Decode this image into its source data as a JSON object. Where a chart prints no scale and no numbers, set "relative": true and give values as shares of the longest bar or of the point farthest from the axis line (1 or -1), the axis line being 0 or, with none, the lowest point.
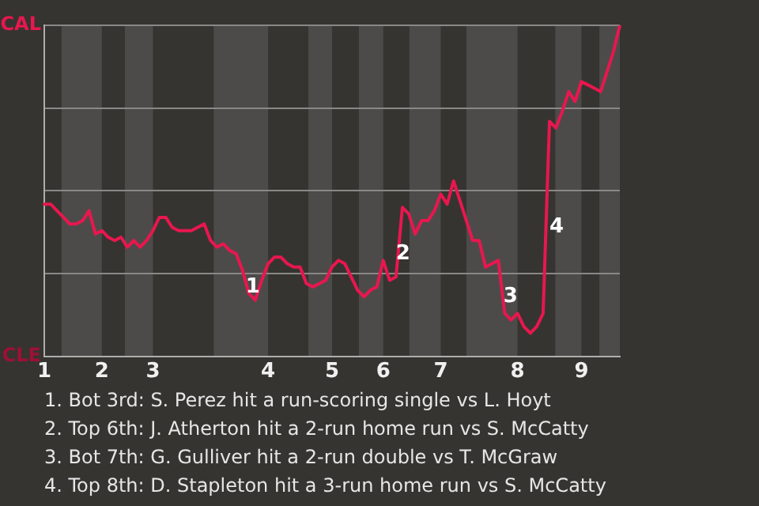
{
  "chart_data": {
    "type": "line",
    "relative": true,
    "categories": [
      "1",
      null,
      null,
      null,
      null,
      null,
      null,
      null,
      null,
      "2",
      null,
      null,
      null,
      null,
      null,
      null,
      null,
      "3",
      null,
      null,
      null,
      null,
      null,
      null,
      null,
      null,
      null,
      null,
      null,
      null,
      null,
      null,
      null,
      null,
      null,
      "4",
      null,
      null,
      null,
      null,
      null,
      null,
      null,
      null,
      null,
      "5",
      null,
      null,
      null,
      null,
      null,
      null,
      null,
      "6",
      null,
      null,
      null,
      null,
      null,
      null,
      null,
      null,
      "7",
      null,
      null,
      null,
      null,
      null,
      null,
      null,
      null,
      null,
      null,
      null,
      "8",
      null,
      null,
      null,
      null,
      null,
      null,
      null,
      null,
      null,
      "9",
      null,
      null,
      null,
      null,
      null,
      null
    ],
    "series": [
      {
        "color": "#e8174f",
        "values": [
          0.46,
          0.46,
          0.44,
          0.42,
          0.4,
          0.4,
          0.41,
          0.44,
          0.37,
          0.38,
          0.36,
          0.35,
          0.36,
          0.33,
          0.35,
          0.33,
          0.35,
          0.38,
          0.42,
          0.42,
          0.39,
          0.38,
          0.38,
          0.38,
          0.39,
          0.4,
          0.35,
          0.33,
          0.34,
          0.32,
          0.31,
          0.26,
          0.19,
          0.17,
          0.23,
          0.28,
          0.3,
          0.3,
          0.28,
          0.27,
          0.27,
          0.22,
          0.21,
          0.22,
          0.23,
          0.27,
          0.29,
          0.28,
          0.24,
          0.2,
          0.18,
          0.2,
          0.21,
          0.29,
          0.23,
          0.24,
          0.45,
          0.43,
          0.37,
          0.41,
          0.41,
          0.44,
          0.49,
          0.46,
          0.53,
          0.47,
          0.41,
          0.35,
          0.35,
          0.27,
          0.28,
          0.29,
          0.13,
          0.11,
          0.13,
          0.09,
          0.07,
          0.09,
          0.13,
          0.71,
          0.69,
          0.74,
          0.8,
          0.77,
          0.83,
          0.82,
          0.81,
          0.8,
          0.86,
          0.92,
          1.0
        ]
      }
    ],
    "grid": "y",
    "annotations": [
      "CAL",
      "CLE",
      "1",
      "2",
      "3",
      "4",
      "1. Bot 3rd: S. Perez hit a run-scoring single vs L. Hoyt",
      "2. Top 6th: J. Atherton hit a 2-run home run vs S. McCatty",
      "3. Bot 7th: G. Gulliver hit a 2-run double vs T. McGraw",
      "4. Top 8th: D. Stapleton hit a 3-run home run vs S. McCatty"
    ]
  }
}
